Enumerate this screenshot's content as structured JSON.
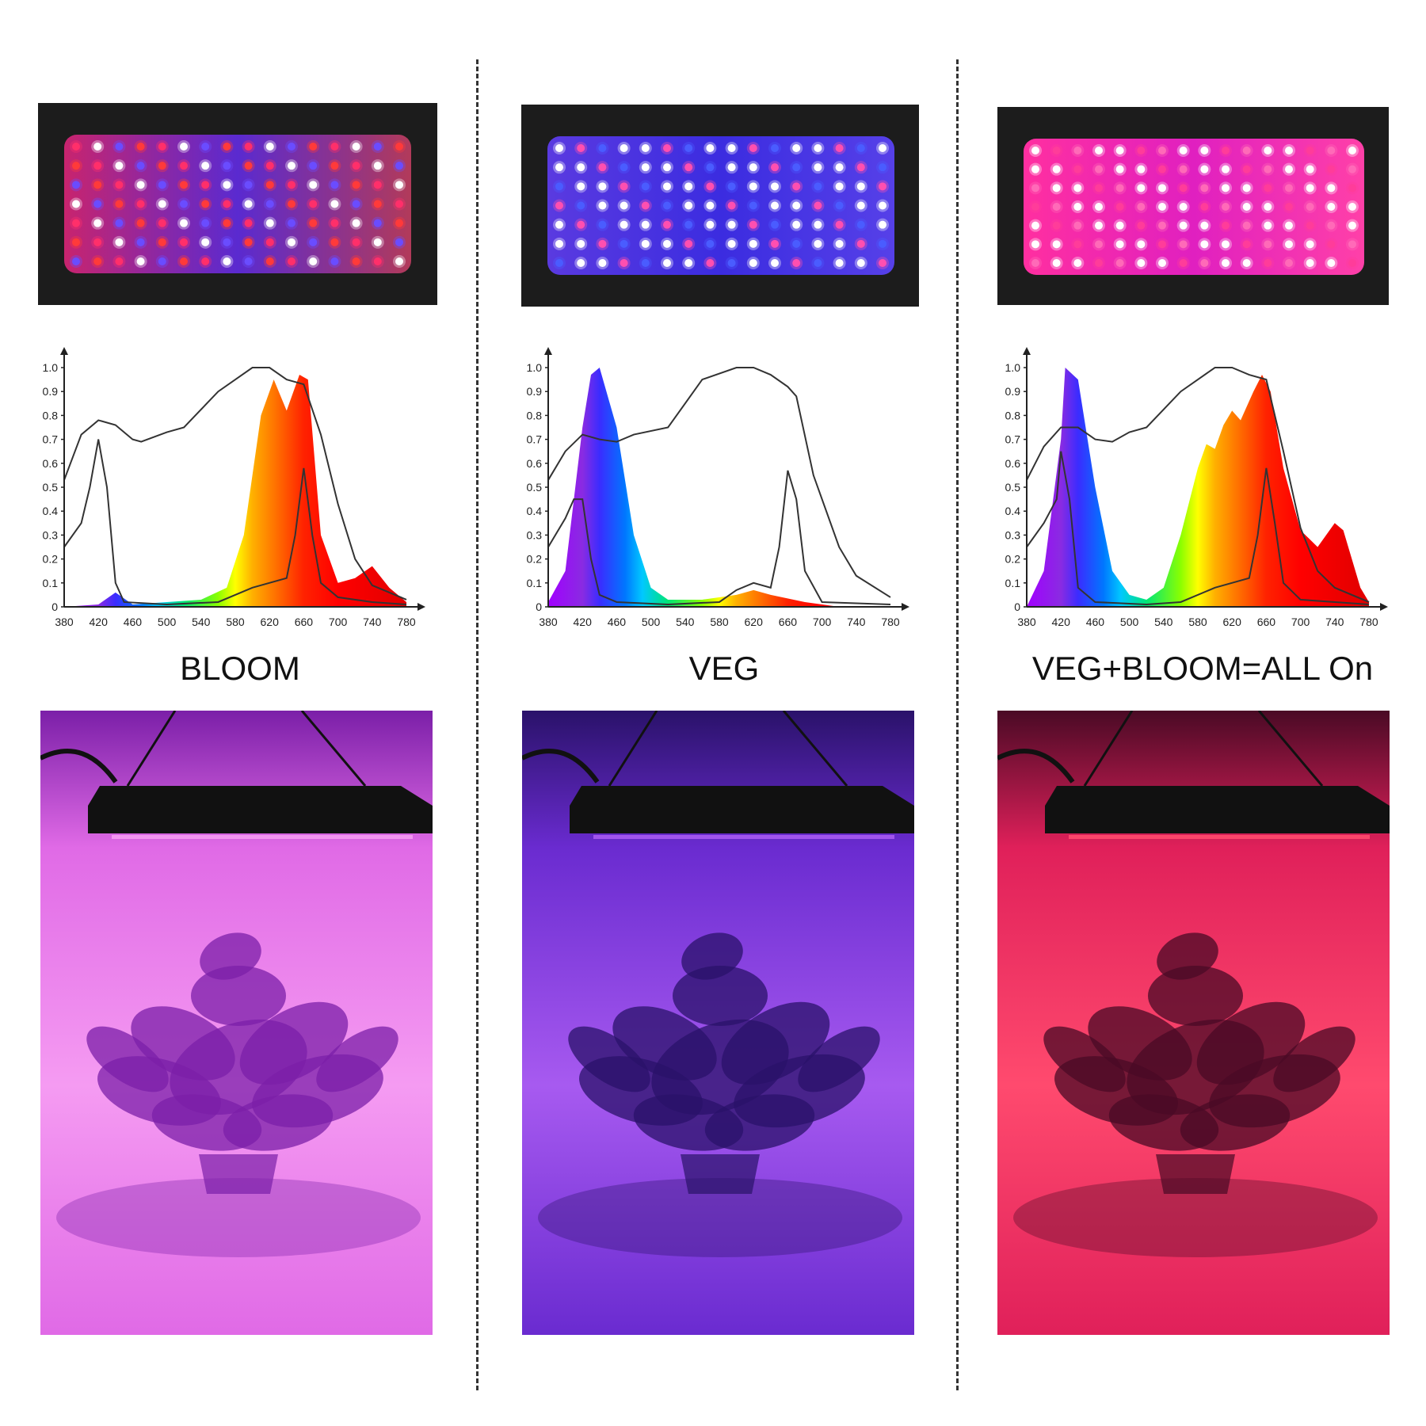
{
  "columns": [
    {
      "id": "bloom",
      "label": "BLOOM",
      "led_colors": [
        "#ff2f6a",
        "#ffffff",
        "#6a4cff",
        "#ff3a3a"
      ],
      "area_bg": [
        "#c8246e",
        "#5a2ad0",
        "#b23a5a"
      ],
      "photo_colors": [
        "#7b1fa8",
        "#e06ae6",
        "#f59bf2"
      ],
      "chart_data": {
        "type": "area",
        "title": "",
        "x_ticks": [
          380,
          420,
          460,
          500,
          540,
          580,
          620,
          660,
          700,
          740,
          780
        ],
        "y_ticks": [
          "0",
          "0.1",
          "0.2",
          "0.3",
          "0.4",
          "0.5",
          "0.6",
          "0.7",
          "0.8",
          "0.9",
          "1.0"
        ],
        "xlim": [
          380,
          780
        ],
        "ylim": [
          0,
          1.0
        ],
        "spectrum": [
          [
            380,
            0
          ],
          [
            420,
            0.01
          ],
          [
            440,
            0.06
          ],
          [
            460,
            0.01
          ],
          [
            500,
            0.02
          ],
          [
            540,
            0.03
          ],
          [
            570,
            0.08
          ],
          [
            590,
            0.3
          ],
          [
            610,
            0.8
          ],
          [
            625,
            0.95
          ],
          [
            640,
            0.82
          ],
          [
            655,
            0.97
          ],
          [
            665,
            0.95
          ],
          [
            680,
            0.3
          ],
          [
            700,
            0.1
          ],
          [
            720,
            0.12
          ],
          [
            740,
            0.17
          ],
          [
            760,
            0.08
          ],
          [
            780,
            0.02
          ]
        ],
        "curve_a": [
          [
            380,
            0.53
          ],
          [
            400,
            0.72
          ],
          [
            420,
            0.78
          ],
          [
            440,
            0.76
          ],
          [
            460,
            0.7
          ],
          [
            470,
            0.69
          ],
          [
            500,
            0.73
          ],
          [
            520,
            0.75
          ],
          [
            560,
            0.9
          ],
          [
            600,
            1.0
          ],
          [
            620,
            1.0
          ],
          [
            640,
            0.95
          ],
          [
            660,
            0.93
          ],
          [
            680,
            0.72
          ],
          [
            700,
            0.43
          ],
          [
            720,
            0.2
          ],
          [
            740,
            0.09
          ],
          [
            780,
            0.03
          ]
        ],
        "curve_b": [
          [
            380,
            0.25
          ],
          [
            400,
            0.35
          ],
          [
            410,
            0.5
          ],
          [
            420,
            0.7
          ],
          [
            430,
            0.5
          ],
          [
            440,
            0.1
          ],
          [
            450,
            0.02
          ],
          [
            500,
            0.01
          ],
          [
            560,
            0.02
          ],
          [
            600,
            0.08
          ],
          [
            640,
            0.12
          ],
          [
            650,
            0.3
          ],
          [
            660,
            0.58
          ],
          [
            670,
            0.3
          ],
          [
            680,
            0.1
          ],
          [
            700,
            0.04
          ],
          [
            740,
            0.02
          ],
          [
            780,
            0.01
          ]
        ]
      }
    },
    {
      "id": "veg",
      "label": "VEG",
      "led_colors": [
        "#ffffff",
        "#ff4fb0",
        "#4a5cff",
        "#ffffff"
      ],
      "area_bg": [
        "#5a3ae0",
        "#3b2ce0",
        "#5640e8"
      ],
      "photo_colors": [
        "#2a126a",
        "#6a2bd0",
        "#a75af0"
      ],
      "chart_data": {
        "type": "area",
        "title": "",
        "x_ticks": [
          380,
          420,
          460,
          500,
          540,
          580,
          620,
          660,
          700,
          740,
          780
        ],
        "y_ticks": [
          "0",
          "0.1",
          "0.2",
          "0.3",
          "0.4",
          "0.5",
          "0.6",
          "0.7",
          "0.8",
          "0.9",
          "1.0"
        ],
        "xlim": [
          380,
          780
        ],
        "ylim": [
          0,
          1.0
        ],
        "spectrum": [
          [
            380,
            0.02
          ],
          [
            400,
            0.15
          ],
          [
            420,
            0.75
          ],
          [
            430,
            0.97
          ],
          [
            440,
            1.0
          ],
          [
            460,
            0.75
          ],
          [
            480,
            0.3
          ],
          [
            500,
            0.08
          ],
          [
            520,
            0.03
          ],
          [
            560,
            0.03
          ],
          [
            600,
            0.05
          ],
          [
            620,
            0.07
          ],
          [
            640,
            0.05
          ],
          [
            680,
            0.02
          ],
          [
            720,
            0.0
          ],
          [
            780,
            0.0
          ]
        ],
        "curve_a": [
          [
            380,
            0.53
          ],
          [
            400,
            0.65
          ],
          [
            420,
            0.72
          ],
          [
            440,
            0.7
          ],
          [
            460,
            0.69
          ],
          [
            480,
            0.72
          ],
          [
            520,
            0.75
          ],
          [
            560,
            0.95
          ],
          [
            600,
            1.0
          ],
          [
            620,
            1.0
          ],
          [
            640,
            0.97
          ],
          [
            660,
            0.92
          ],
          [
            670,
            0.88
          ],
          [
            690,
            0.55
          ],
          [
            720,
            0.25
          ],
          [
            740,
            0.13
          ],
          [
            780,
            0.04
          ]
        ],
        "curve_b": [
          [
            380,
            0.25
          ],
          [
            400,
            0.37
          ],
          [
            410,
            0.45
          ],
          [
            420,
            0.45
          ],
          [
            430,
            0.2
          ],
          [
            440,
            0.05
          ],
          [
            460,
            0.02
          ],
          [
            520,
            0.01
          ],
          [
            580,
            0.02
          ],
          [
            600,
            0.07
          ],
          [
            620,
            0.1
          ],
          [
            640,
            0.08
          ],
          [
            650,
            0.25
          ],
          [
            660,
            0.57
          ],
          [
            670,
            0.45
          ],
          [
            680,
            0.15
          ],
          [
            700,
            0.02
          ],
          [
            780,
            0.01
          ]
        ]
      }
    },
    {
      "id": "all",
      "label": "VEG+BLOOM=ALL On",
      "led_colors": [
        "#ffffff",
        "#ff3c9a",
        "#ff6ab8",
        "#ffffff"
      ],
      "area_bg": [
        "#ff2fa0",
        "#e020c0",
        "#ff40a8"
      ],
      "photo_colors": [
        "#4a0a25",
        "#e0205a",
        "#ff4a6e"
      ],
      "chart_data": {
        "type": "area",
        "title": "",
        "x_ticks": [
          380,
          420,
          460,
          500,
          540,
          580,
          620,
          660,
          700,
          740,
          780
        ],
        "y_ticks": [
          "0",
          "0.1",
          "0.2",
          "0.3",
          "0.4",
          "0.5",
          "0.6",
          "0.7",
          "0.8",
          "0.9",
          "1.0"
        ],
        "xlim": [
          380,
          780
        ],
        "ylim": [
          0,
          1.0
        ],
        "spectrum": [
          [
            380,
            0.0
          ],
          [
            400,
            0.15
          ],
          [
            420,
            0.7
          ],
          [
            425,
            1.0
          ],
          [
            440,
            0.95
          ],
          [
            460,
            0.5
          ],
          [
            480,
            0.15
          ],
          [
            500,
            0.05
          ],
          [
            520,
            0.03
          ],
          [
            540,
            0.08
          ],
          [
            560,
            0.3
          ],
          [
            580,
            0.58
          ],
          [
            590,
            0.68
          ],
          [
            600,
            0.66
          ],
          [
            610,
            0.76
          ],
          [
            620,
            0.82
          ],
          [
            630,
            0.78
          ],
          [
            645,
            0.9
          ],
          [
            655,
            0.97
          ],
          [
            665,
            0.9
          ],
          [
            680,
            0.58
          ],
          [
            700,
            0.32
          ],
          [
            720,
            0.25
          ],
          [
            740,
            0.35
          ],
          [
            750,
            0.32
          ],
          [
            770,
            0.08
          ],
          [
            780,
            0.02
          ]
        ],
        "curve_a": [
          [
            380,
            0.53
          ],
          [
            400,
            0.67
          ],
          [
            420,
            0.75
          ],
          [
            440,
            0.75
          ],
          [
            460,
            0.7
          ],
          [
            480,
            0.69
          ],
          [
            500,
            0.73
          ],
          [
            520,
            0.75
          ],
          [
            560,
            0.9
          ],
          [
            600,
            1.0
          ],
          [
            620,
            1.0
          ],
          [
            640,
            0.97
          ],
          [
            660,
            0.95
          ],
          [
            680,
            0.65
          ],
          [
            700,
            0.33
          ],
          [
            720,
            0.15
          ],
          [
            740,
            0.08
          ],
          [
            780,
            0.02
          ]
        ],
        "curve_b": [
          [
            380,
            0.25
          ],
          [
            400,
            0.35
          ],
          [
            415,
            0.45
          ],
          [
            420,
            0.65
          ],
          [
            430,
            0.45
          ],
          [
            440,
            0.08
          ],
          [
            460,
            0.02
          ],
          [
            520,
            0.01
          ],
          [
            560,
            0.02
          ],
          [
            600,
            0.08
          ],
          [
            640,
            0.12
          ],
          [
            650,
            0.3
          ],
          [
            660,
            0.58
          ],
          [
            670,
            0.35
          ],
          [
            680,
            0.1
          ],
          [
            700,
            0.03
          ],
          [
            780,
            0.01
          ]
        ]
      }
    }
  ]
}
